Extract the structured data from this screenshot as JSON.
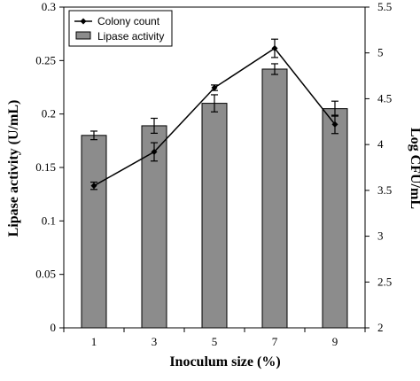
{
  "chart_data": {
    "type": "bar",
    "categories": [
      "1",
      "3",
      "5",
      "7",
      "9"
    ],
    "xlabel": "Inoculum size (%)",
    "ylabel": "Lipase activity (U/mL)",
    "y2label": "Log CFU/mL",
    "ylim": [
      0,
      0.3
    ],
    "y2lim": [
      2,
      5.5
    ],
    "yticks": [
      "0",
      "0.05",
      "0.1",
      "0.15",
      "0.2",
      "0.25",
      "0.3"
    ],
    "y2ticks": [
      "2",
      "2.5",
      "3",
      "3.5",
      "4",
      "4.5",
      "5",
      "5.5"
    ],
    "series": [
      {
        "name": "Lipase activity",
        "kind": "bar",
        "axis": "left",
        "values": [
          0.18,
          0.189,
          0.21,
          0.242,
          0.205
        ],
        "errors": [
          0.004,
          0.007,
          0.008,
          0.005,
          0.007
        ]
      },
      {
        "name": "Colony count",
        "kind": "line",
        "axis": "right",
        "marker": "diamond",
        "values": [
          3.55,
          3.92,
          4.62,
          5.05,
          4.22
        ],
        "errors": [
          0.04,
          0.1,
          0.03,
          0.1,
          0.1
        ]
      }
    ],
    "legend": "top-left",
    "grid": false,
    "colors": {
      "bar_fill": "#8c8c8c",
      "bar_stroke": "#000000",
      "line": "#000000"
    }
  }
}
